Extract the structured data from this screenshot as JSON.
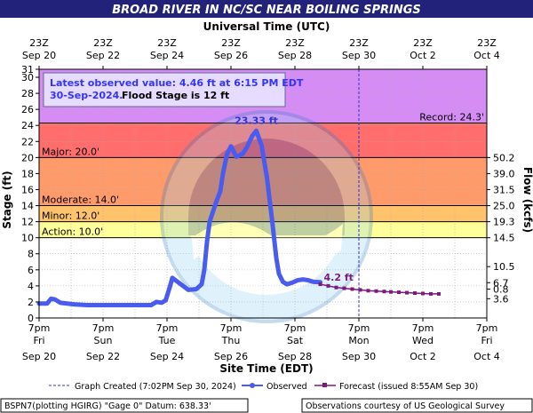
{
  "title": "BROAD RIVER IN NC/SC NEAR BOILING SPRINGS",
  "top_axis_title": "Universal Time (UTC)",
  "bottom_axis_title": "Site Time (EDT)",
  "left_axis_title": "Stage (ft)",
  "right_axis_title": "Flow (kcfs)",
  "latest_box": {
    "line1": "Latest observed value: 4.46 ft at 6:15 PM EDT",
    "line2_date": "30-Sep-2024.",
    "line2_flood": "Flood Stage is 12 ft"
  },
  "footer": {
    "legend_created": "Graph Created (7:02PM Sep 30, 2024)",
    "legend_observed": "Observed",
    "legend_forecast": "Forecast (issued 8:55AM Sep 30)",
    "left_info": "BSPN7(plotting HGIRG) \"Gage 0\" Datum: 638.33'",
    "right_info": "Observations courtesy of US Geological Survey"
  },
  "colors": {
    "title_bg": "#22227a",
    "record": "#d58cf5",
    "major": "#ff6d6d",
    "moderate": "#ff9a6b",
    "minor": "#ffc46b",
    "action": "#ffff99",
    "observed": "#4a5cf0",
    "forecast": "#7d1a7d",
    "now_line": "#3333cc"
  },
  "chart_data": {
    "type": "line",
    "title": "BROAD RIVER IN NC/SC NEAR BOILING SPRINGS",
    "xlabel": "Site Time (EDT)",
    "ylabel": "Stage (ft)",
    "y2label": "Flow (kcfs)",
    "ylim": [
      0,
      31
    ],
    "grid": true,
    "x_hours_range": [
      0,
      264
    ],
    "x_tick_labels_bottom": [
      {
        "h": 0,
        "l1": "7pm",
        "l2": "Fri",
        "l3": "Sep 20"
      },
      {
        "h": 48,
        "l1": "7pm",
        "l2": "Sun",
        "l3": "Sep 22"
      },
      {
        "h": 96,
        "l1": "7pm",
        "l2": "Tue",
        "l3": "Sep 24"
      },
      {
        "h": 144,
        "l1": "7pm",
        "l2": "Thu",
        "l3": "Sep 26"
      },
      {
        "h": 192,
        "l1": "7pm",
        "l2": "Sat",
        "l3": "Sep 28"
      },
      {
        "h": 240,
        "l1": "7pm",
        "l2": "Mon",
        "l3": "Sep 30"
      },
      {
        "h": 288,
        "l1": "7pm",
        "l2": "Wed",
        "l3": "Oct 2"
      },
      {
        "h": 336,
        "l1": "7pm",
        "l2": "Fri",
        "l3": "Oct 4"
      }
    ],
    "x_tick_labels_top": [
      {
        "h": 0,
        "l1": "23Z",
        "l2": "Sep 20"
      },
      {
        "h": 48,
        "l1": "23Z",
        "l2": "Sep 22"
      },
      {
        "h": 96,
        "l1": "23Z",
        "l2": "Sep 24"
      },
      {
        "h": 144,
        "l1": "23Z",
        "l2": "Sep 26"
      },
      {
        "h": 192,
        "l1": "23Z",
        "l2": "Sep 28"
      },
      {
        "h": 240,
        "l1": "23Z",
        "l2": "Sep 30"
      },
      {
        "h": 288,
        "l1": "23Z",
        "l2": "Oct  2"
      },
      {
        "h": 336,
        "l1": "23Z",
        "l2": "Oct  4"
      }
    ],
    "y_ticks": [
      0,
      2,
      4,
      6,
      8,
      10,
      12,
      14,
      16,
      18,
      20,
      22,
      24,
      26,
      28,
      30,
      31
    ],
    "flow_ticks": [
      {
        "stage": 3.6,
        "label": "0.8"
      },
      {
        "stage": 2.4,
        "label": "3.6"
      },
      {
        "stage": 4.4,
        "label": "6.7"
      },
      {
        "stage": 6.4,
        "label": "10.5"
      },
      {
        "stage": 10,
        "label": "14.5"
      },
      {
        "stage": 12,
        "label": "19.3"
      },
      {
        "stage": 14,
        "label": "25.0"
      },
      {
        "stage": 16,
        "label": "31.5"
      },
      {
        "stage": 18,
        "label": "39.0"
      },
      {
        "stage": 20,
        "label": "50.2"
      }
    ],
    "flood_categories": [
      {
        "name": "Action",
        "label": "Action: 10.0'",
        "from": 10,
        "to": 12
      },
      {
        "name": "Minor",
        "label": "Minor: 12.0'",
        "from": 12,
        "to": 14
      },
      {
        "name": "Moderate",
        "label": "Moderate: 14.0'",
        "from": 14,
        "to": 20
      },
      {
        "name": "Major",
        "label": "Major: 20.0'",
        "from": 20,
        "to": 24.3
      },
      {
        "name": "Record",
        "label": "Record: 24.3'",
        "from": 24.3,
        "to": 31
      }
    ],
    "peak": {
      "label": "23.33 ft",
      "value": 23.33
    },
    "last_label": {
      "label": "4.2 ft",
      "value": 4.2
    },
    "series": [
      {
        "name": "Observed",
        "points": [
          [
            0,
            1.8
          ],
          [
            6,
            1.8
          ],
          [
            9,
            2.4
          ],
          [
            12,
            2.3
          ],
          [
            16,
            1.9
          ],
          [
            26,
            1.7
          ],
          [
            36,
            1.6
          ],
          [
            48,
            1.6
          ],
          [
            60,
            1.6
          ],
          [
            72,
            1.6
          ],
          [
            84,
            1.6
          ],
          [
            88,
            2.0
          ],
          [
            92,
            1.9
          ],
          [
            95,
            2.2
          ],
          [
            98,
            3.8
          ],
          [
            100,
            5.0
          ],
          [
            104,
            4.5
          ],
          [
            112,
            3.5
          ],
          [
            118,
            3.6
          ],
          [
            122,
            4.2
          ],
          [
            124,
            6.0
          ],
          [
            126,
            9.5
          ],
          [
            128,
            12.0
          ],
          [
            130,
            13.0
          ],
          [
            133,
            14.5
          ],
          [
            136,
            15.8
          ],
          [
            138,
            18.0
          ],
          [
            141,
            20.4
          ],
          [
            144,
            21.4
          ],
          [
            148,
            20.1
          ],
          [
            153,
            20.5
          ],
          [
            156,
            21.3
          ],
          [
            160,
            22.7
          ],
          [
            163,
            23.33
          ],
          [
            167,
            21.5
          ],
          [
            171,
            17.5
          ],
          [
            175,
            12.0
          ],
          [
            178,
            7.5
          ],
          [
            180,
            5.5
          ],
          [
            183,
            4.5
          ],
          [
            186,
            4.2
          ],
          [
            190,
            4.4
          ],
          [
            194,
            4.7
          ],
          [
            198,
            4.8
          ],
          [
            202,
            4.7
          ],
          [
            206,
            4.5
          ],
          [
            211,
            4.46
          ]
        ]
      },
      {
        "name": "Forecast",
        "points": [
          [
            211,
            4.2
          ],
          [
            217,
            4.0
          ],
          [
            223,
            3.8
          ],
          [
            229,
            3.7
          ],
          [
            235,
            3.6
          ],
          [
            241,
            3.5
          ],
          [
            247,
            3.4
          ],
          [
            253,
            3.35
          ],
          [
            259,
            3.3
          ],
          [
            264,
            3.25
          ],
          [
            270,
            3.2
          ],
          [
            276,
            3.15
          ],
          [
            282,
            3.1
          ],
          [
            288,
            3.05
          ],
          [
            294,
            3.0
          ],
          [
            300,
            3.0
          ]
        ]
      }
    ],
    "now_hours": 240
  }
}
